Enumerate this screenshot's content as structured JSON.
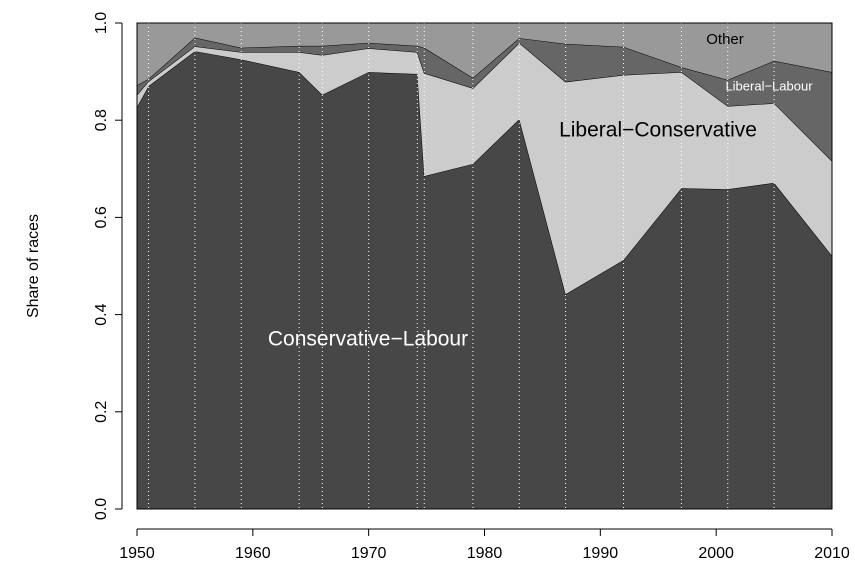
{
  "chart_data": {
    "type": "stacked_area",
    "y_label": "Share of races",
    "x": [
      1950,
      1951,
      1955,
      1959,
      1964,
      1966,
      1970,
      1974.2,
      1974.8,
      1979,
      1983,
      1987,
      1992,
      1997,
      2001,
      2005,
      2010
    ],
    "series": [
      {
        "name": "Conservative−Labour",
        "color": "#474747",
        "values": [
          0.827,
          0.87,
          0.942,
          0.925,
          0.899,
          0.852,
          0.899,
          0.895,
          0.685,
          0.71,
          0.802,
          0.442,
          0.512,
          0.66,
          0.658,
          0.671,
          0.521
        ]
      },
      {
        "name": "Liberal−Conservative",
        "color": "#cccccc",
        "values": [
          0.025,
          0.01,
          0.01,
          0.015,
          0.041,
          0.082,
          0.049,
          0.045,
          0.212,
          0.156,
          0.157,
          0.437,
          0.381,
          0.239,
          0.171,
          0.164,
          0.195
        ]
      },
      {
        "name": "Liberal−Labour",
        "color": "#666666",
        "values": [
          0.02,
          0.005,
          0.018,
          0.009,
          0.013,
          0.019,
          0.011,
          0.013,
          0.052,
          0.021,
          0.01,
          0.078,
          0.058,
          0.01,
          0.054,
          0.087,
          0.183
        ]
      },
      {
        "name": "Other",
        "color": "#999999",
        "values": [
          0.128,
          0.115,
          0.03,
          0.051,
          0.047,
          0.047,
          0.041,
          0.047,
          0.051,
          0.113,
          0.031,
          0.043,
          0.049,
          0.091,
          0.117,
          0.078,
          0.101
        ]
      }
    ],
    "xlim": [
      1950,
      2010
    ],
    "xticks": [
      1950,
      1960,
      1970,
      1980,
      1990,
      2000,
      2010
    ],
    "ylim": [
      0,
      1
    ],
    "yticks": [
      {
        "value": 0,
        "label": "0.0"
      },
      {
        "value": 0.2,
        "label": "0.2"
      },
      {
        "value": 0.4,
        "label": "0.4"
      },
      {
        "value": 0.6,
        "label": "0.6"
      },
      {
        "value": 0.8,
        "label": "0.8"
      },
      {
        "value": 1,
        "label": "1.0"
      }
    ]
  }
}
